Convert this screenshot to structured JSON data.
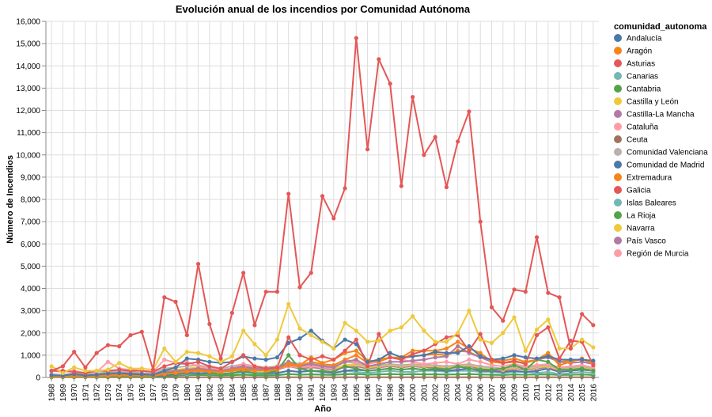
{
  "chart_data": {
    "type": "line",
    "title": "Evolución anual de los incendios por Comunidad Autónoma",
    "xlabel": "Año",
    "ylabel": "Número de Incendios",
    "legend_title": "comunidad_autonoma",
    "legend_position": "right",
    "grid": true,
    "ylim": [
      0,
      16000
    ],
    "yticks": [
      0,
      1000,
      2000,
      3000,
      4000,
      5000,
      6000,
      7000,
      8000,
      9000,
      10000,
      11000,
      12000,
      13000,
      14000,
      15000,
      16000
    ],
    "x": [
      1968,
      1969,
      1970,
      1971,
      1972,
      1973,
      1974,
      1975,
      1976,
      1977,
      1978,
      1979,
      1980,
      1981,
      1982,
      1983,
      1984,
      1985,
      1986,
      1987,
      1988,
      1989,
      1990,
      1991,
      1992,
      1993,
      1994,
      1995,
      1996,
      1997,
      1998,
      1999,
      2000,
      2001,
      2002,
      2003,
      2004,
      2005,
      2006,
      2007,
      2008,
      2009,
      2010,
      2011,
      2012,
      2013,
      2014,
      2015,
      2016
    ],
    "series": [
      {
        "name": "Andalucía",
        "color": "#4c78a8",
        "values": [
          100,
          80,
          150,
          90,
          120,
          180,
          200,
          150,
          140,
          120,
          300,
          450,
          850,
          800,
          700,
          650,
          700,
          950,
          850,
          800,
          900,
          1550,
          1750,
          2100,
          1650,
          1300,
          1700,
          1500,
          700,
          800,
          1100,
          900,
          950,
          1000,
          1150,
          1100,
          1100,
          1400,
          950,
          800,
          850,
          1000,
          900,
          850,
          950,
          800,
          800,
          800,
          750
        ]
      },
      {
        "name": "Aragón",
        "color": "#f58518",
        "values": [
          50,
          40,
          60,
          50,
          60,
          80,
          90,
          80,
          100,
          90,
          150,
          200,
          250,
          300,
          250,
          250,
          300,
          350,
          300,
          300,
          350,
          600,
          550,
          900,
          650,
          800,
          1100,
          1200,
          750,
          700,
          900,
          900,
          1200,
          1200,
          1200,
          1300,
          1600,
          1300,
          1100,
          700,
          650,
          700,
          650,
          800,
          1100,
          550,
          700,
          850,
          600
        ]
      },
      {
        "name": "Asturias",
        "color": "#e45756",
        "values": [
          300,
          300,
          250,
          200,
          300,
          300,
          350,
          300,
          300,
          250,
          500,
          650,
          600,
          700,
          500,
          400,
          700,
          1000,
          500,
          400,
          450,
          1800,
          1000,
          800,
          950,
          800,
          1200,
          1700,
          500,
          1950,
          900,
          800,
          1050,
          1200,
          1500,
          1800,
          1900,
          1200,
          1950,
          800,
          650,
          750,
          600,
          1900,
          2250,
          850,
          1650,
          1600,
          550
        ]
      },
      {
        "name": "Canarias",
        "color": "#72b7b2",
        "values": [
          50,
          40,
          60,
          40,
          50,
          60,
          80,
          70,
          60,
          50,
          100,
          150,
          150,
          200,
          150,
          150,
          200,
          250,
          200,
          180,
          200,
          300,
          250,
          300,
          250,
          200,
          300,
          250,
          200,
          250,
          300,
          250,
          250,
          300,
          300,
          250,
          300,
          300,
          250,
          250,
          200,
          250,
          250,
          200,
          250,
          150,
          200,
          250,
          200
        ]
      },
      {
        "name": "Cantabria",
        "color": "#54a24b",
        "values": [
          20,
          30,
          40,
          30,
          40,
          50,
          60,
          50,
          50,
          40,
          200,
          300,
          300,
          350,
          200,
          150,
          200,
          300,
          200,
          200,
          300,
          1000,
          400,
          300,
          300,
          250,
          500,
          400,
          300,
          350,
          400,
          350,
          400,
          350,
          400,
          350,
          500,
          400,
          350,
          350,
          400,
          550,
          350,
          800,
          700,
          350,
          350,
          400,
          300
        ]
      },
      {
        "name": "Castilla y León",
        "color": "#eeca3b",
        "values": [
          500,
          200,
          450,
          300,
          300,
          350,
          650,
          400,
          400,
          350,
          1300,
          700,
          1150,
          1100,
          950,
          700,
          950,
          2100,
          1500,
          1000,
          1700,
          3300,
          2200,
          1900,
          1600,
          1300,
          2450,
          2100,
          1600,
          1650,
          2100,
          2250,
          2750,
          2100,
          1600,
          1600,
          2000,
          3000,
          1700,
          1550,
          2000,
          2700,
          1200,
          2150,
          2600,
          1300,
          1300,
          1700,
          1350
        ]
      },
      {
        "name": "Castilla-La Mancha",
        "color": "#b279a2",
        "values": [
          100,
          80,
          120,
          100,
          120,
          150,
          200,
          180,
          150,
          120,
          250,
          300,
          350,
          400,
          350,
          300,
          400,
          500,
          400,
          350,
          400,
          700,
          500,
          600,
          500,
          450,
          700,
          800,
          500,
          600,
          700,
          700,
          750,
          800,
          900,
          950,
          1400,
          1100,
          900,
          700,
          650,
          700,
          650,
          800,
          900,
          700,
          650,
          700,
          600
        ]
      },
      {
        "name": "Cataluña",
        "color": "#ff9da6",
        "values": [
          300,
          250,
          300,
          200,
          250,
          700,
          400,
          350,
          300,
          250,
          800,
          650,
          700,
          500,
          400,
          350,
          400,
          600,
          450,
          400,
          450,
          600,
          500,
          550,
          450,
          400,
          800,
          700,
          600,
          700,
          900,
          800,
          700,
          600,
          650,
          700,
          600,
          800,
          700,
          550,
          500,
          600,
          500,
          550,
          600,
          450,
          500,
          550,
          450
        ]
      },
      {
        "name": "Ceuta",
        "color": "#9d755d",
        "values": [
          10,
          10,
          10,
          10,
          10,
          10,
          10,
          10,
          10,
          10,
          10,
          10,
          10,
          10,
          10,
          10,
          10,
          10,
          10,
          10,
          10,
          10,
          10,
          10,
          10,
          10,
          10,
          10,
          10,
          10,
          10,
          10,
          10,
          10,
          10,
          10,
          10,
          10,
          10,
          10,
          10,
          10,
          10,
          10,
          10,
          10,
          10,
          10,
          10
        ]
      },
      {
        "name": "Comunidad Valenciana",
        "color": "#bab0ac",
        "values": [
          150,
          120,
          200,
          150,
          180,
          250,
          300,
          250,
          200,
          180,
          400,
          450,
          500,
          550,
          450,
          400,
          500,
          600,
          500,
          450,
          500,
          700,
          600,
          650,
          550,
          500,
          700,
          650,
          500,
          550,
          600,
          550,
          600,
          550,
          550,
          500,
          550,
          600,
          500,
          450,
          400,
          500,
          450,
          500,
          550,
          400,
          450,
          500,
          400
        ]
      },
      {
        "name": "Comunidad de Madrid",
        "color": "#4c78a8",
        "values": [
          50,
          40,
          60,
          50,
          60,
          80,
          90,
          80,
          70,
          60,
          100,
          150,
          200,
          200,
          180,
          150,
          200,
          250,
          200,
          180,
          200,
          300,
          250,
          300,
          250,
          200,
          300,
          350,
          300,
          350,
          400,
          350,
          400,
          350,
          350,
          300,
          350,
          400,
          300,
          300,
          250,
          300,
          250,
          300,
          400,
          250,
          300,
          350,
          300
        ]
      },
      {
        "name": "Extremadura",
        "color": "#f58518",
        "values": [
          50,
          40,
          60,
          50,
          60,
          80,
          100,
          90,
          80,
          70,
          150,
          200,
          300,
          350,
          300,
          250,
          350,
          450,
          400,
          350,
          400,
          550,
          500,
          700,
          600,
          550,
          800,
          1000,
          650,
          800,
          900,
          850,
          950,
          1000,
          1050,
          1000,
          1200,
          1150,
          900,
          800,
          750,
          850,
          700,
          800,
          1050,
          700,
          750,
          800,
          650
        ]
      },
      {
        "name": "Galicia",
        "color": "#e45756",
        "values": [
          300,
          500,
          1150,
          450,
          1100,
          1450,
          1400,
          1900,
          2050,
          350,
          3600,
          3400,
          1900,
          5100,
          2400,
          850,
          2900,
          4700,
          2350,
          3850,
          3850,
          8250,
          4050,
          4700,
          8150,
          7150,
          8500,
          15250,
          10250,
          14300,
          13200,
          8600,
          12600,
          10000,
          10800,
          8550,
          10600,
          11950,
          7000,
          3150,
          2550,
          3950,
          3850,
          6300,
          3800,
          3600,
          1300,
          2850,
          2350
        ]
      },
      {
        "name": "Islas Baleares",
        "color": "#72b7b2",
        "values": [
          50,
          40,
          50,
          40,
          50,
          60,
          70,
          60,
          60,
          50,
          80,
          100,
          120,
          130,
          110,
          100,
          120,
          140,
          120,
          110,
          120,
          150,
          130,
          140,
          130,
          120,
          140,
          150,
          130,
          140,
          150,
          140,
          150,
          140,
          140,
          130,
          140,
          150,
          130,
          120,
          110,
          130,
          120,
          130,
          140,
          110,
          120,
          130,
          110
        ]
      },
      {
        "name": "La Rioja",
        "color": "#54a24b",
        "values": [
          20,
          20,
          30,
          20,
          30,
          40,
          50,
          40,
          40,
          30,
          60,
          80,
          100,
          110,
          100,
          90,
          100,
          120,
          100,
          90,
          100,
          150,
          120,
          140,
          120,
          110,
          150,
          160,
          120,
          140,
          150,
          140,
          150,
          140,
          140,
          130,
          140,
          150,
          130,
          120,
          110,
          130,
          120,
          130,
          140,
          110,
          120,
          130,
          110
        ]
      },
      {
        "name": "Navarra",
        "color": "#eeca3b",
        "values": [
          100,
          100,
          150,
          100,
          150,
          200,
          250,
          200,
          200,
          150,
          300,
          350,
          400,
          450,
          400,
          350,
          400,
          500,
          400,
          350,
          400,
          600,
          500,
          550,
          450,
          400,
          550,
          600,
          450,
          500,
          550,
          500,
          550,
          500,
          500,
          450,
          500,
          550,
          450,
          400,
          350,
          450,
          400,
          450,
          500,
          350,
          400,
          450,
          350
        ]
      },
      {
        "name": "País Vasco",
        "color": "#b279a2",
        "values": [
          50,
          50,
          80,
          60,
          80,
          100,
          150,
          120,
          100,
          80,
          200,
          250,
          300,
          350,
          300,
          250,
          300,
          400,
          350,
          300,
          350,
          500,
          400,
          450,
          400,
          350,
          450,
          500,
          400,
          450,
          500,
          450,
          500,
          450,
          450,
          400,
          450,
          500,
          400,
          350,
          300,
          400,
          350,
          400,
          450,
          300,
          350,
          400,
          300
        ]
      },
      {
        "name": "Región de Murcia",
        "color": "#ff9da6",
        "values": [
          100,
          80,
          120,
          100,
          120,
          150,
          200,
          180,
          150,
          120,
          250,
          300,
          350,
          400,
          350,
          300,
          350,
          450,
          400,
          350,
          400,
          500,
          450,
          500,
          450,
          400,
          500,
          550,
          450,
          500,
          550,
          500,
          550,
          500,
          500,
          450,
          500,
          550,
          450,
          400,
          350,
          450,
          400,
          450,
          500,
          350,
          400,
          450,
          350
        ]
      }
    ]
  }
}
